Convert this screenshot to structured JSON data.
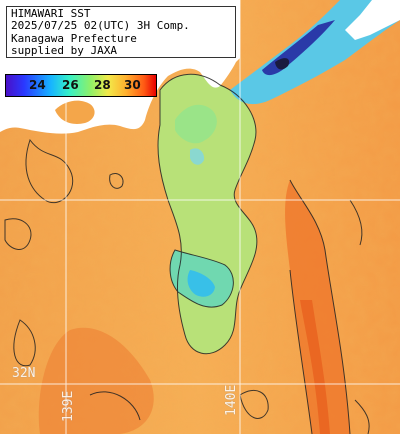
{
  "map": {
    "title_lines": [
      "HIMAWARI SST",
      "2025/07/25 02(UTC) 3H Comp.",
      "Kanagawa Prefecture",
      "supplied by JAXA"
    ],
    "colorbar": {
      "ticks": [
        "24",
        "26",
        "28",
        "30"
      ],
      "colors": [
        "#4a10c8",
        "#2a38ff",
        "#17b4ff",
        "#35f0c8",
        "#8cf06a",
        "#f2ea4a",
        "#ffb02e",
        "#ff5a14",
        "#e80000"
      ]
    },
    "graticule": {
      "lat_label": "32N",
      "lon_labels": [
        "139E",
        "140E"
      ]
    },
    "colors": {
      "land": "#ffffff",
      "warm_sea": "#f4a64a",
      "hot_sea": "#f07a2a",
      "cool_sea": "#a8e070",
      "cold_sea": "#38c8e8",
      "coldest_sea": "#2a3aa8",
      "grid": "#ffffff"
    }
  }
}
